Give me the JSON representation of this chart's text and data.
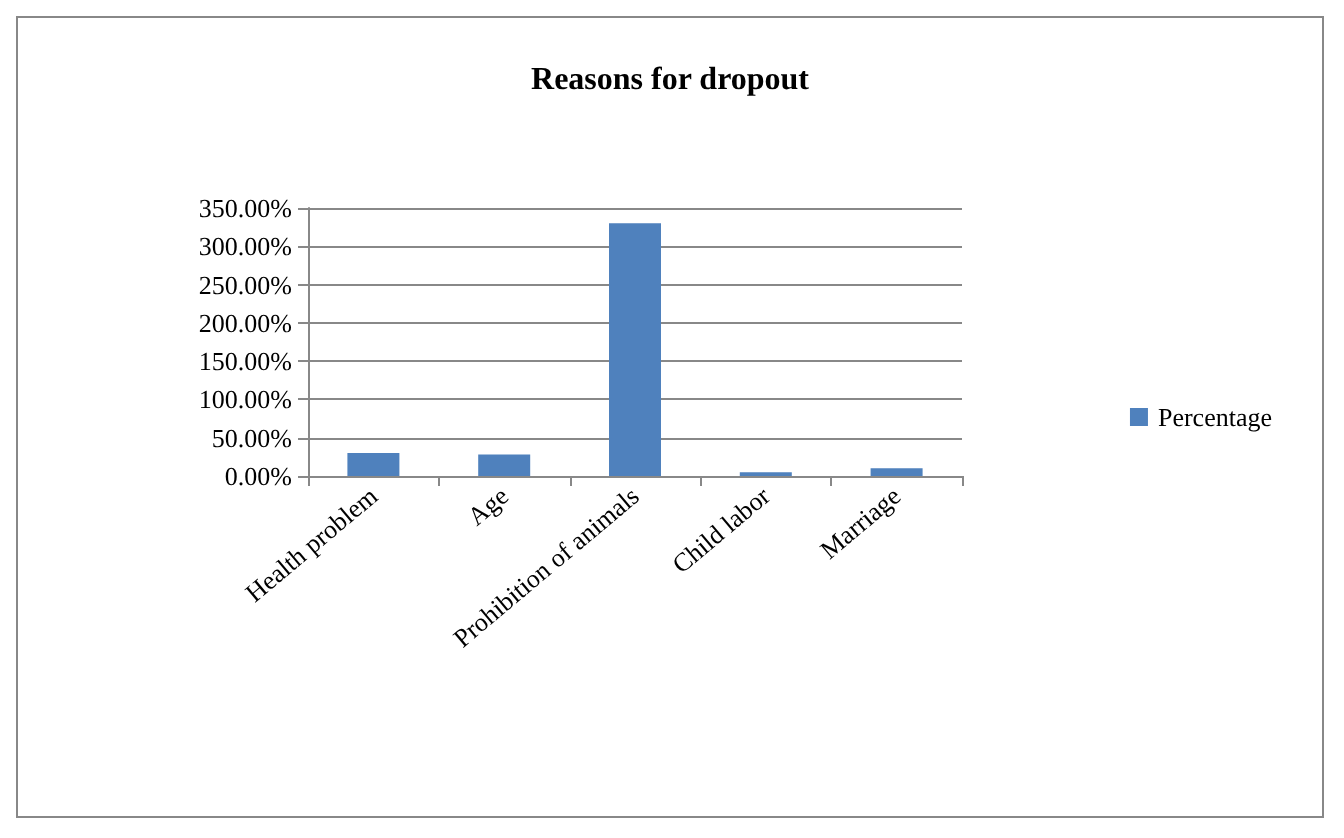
{
  "chart_data": {
    "type": "bar",
    "title": "Reasons for dropout",
    "categories": [
      "Health problem",
      "Age",
      "Prohibition of animals",
      "Child labor",
      "Marriage"
    ],
    "series": [
      {
        "name": "Percentage",
        "color": "#4f81bd",
        "values": [
          30,
          28,
          330,
          5,
          10
        ]
      }
    ],
    "ylim": [
      0,
      350
    ],
    "yticks": [
      {
        "value": 0,
        "label": "0.00%"
      },
      {
        "value": 50,
        "label": "50.00%"
      },
      {
        "value": 100,
        "label": "100.00%"
      },
      {
        "value": 150,
        "label": "150.00%"
      },
      {
        "value": 200,
        "label": "200.00%"
      },
      {
        "value": 250,
        "label": "250.00%"
      },
      {
        "value": 300,
        "label": "300.00%"
      },
      {
        "value": 350,
        "label": "350.00%"
      }
    ],
    "grid": "y",
    "legend": "right"
  }
}
